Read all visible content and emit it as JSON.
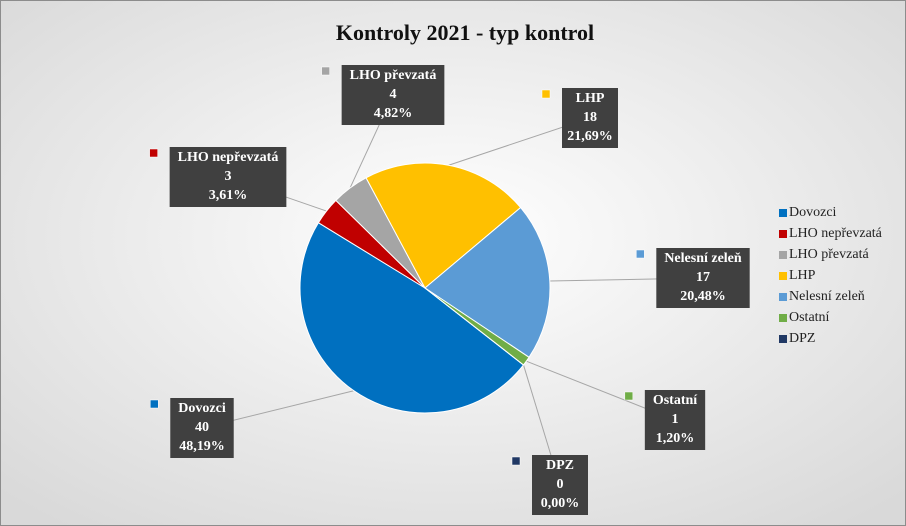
{
  "chart_data": {
    "type": "pie",
    "title": "Kontroly 2021 - typ kontrol",
    "categories": [
      "Dovozci",
      "LHO nepřevzatá",
      "LHO převzatá",
      "LHP",
      "Nelesní zeleň",
      "Ostatní",
      "DPZ"
    ],
    "values": [
      40,
      3,
      4,
      18,
      17,
      1,
      0
    ],
    "percent_labels": [
      "48,19%",
      "3,61%",
      "4,82%",
      "21,69%",
      "20,48%",
      "1,20%",
      "0,00%"
    ],
    "colors": [
      "#0070c0",
      "#c00000",
      "#a5a5a5",
      "#ffc000",
      "#5b9bd5",
      "#70ad47",
      "#203864"
    ],
    "legend": "right"
  }
}
